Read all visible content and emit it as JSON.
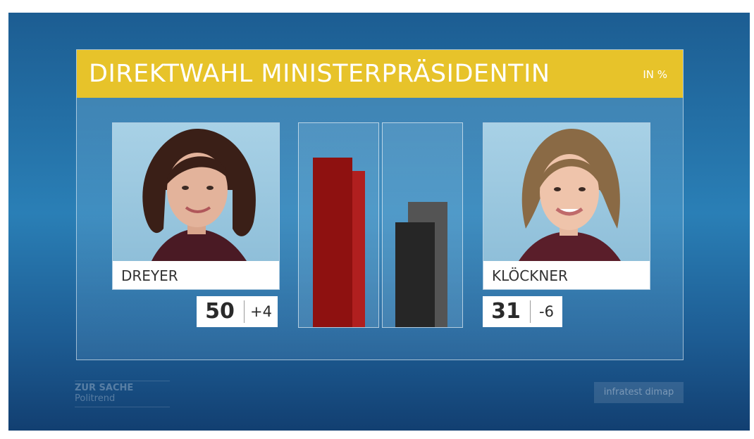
{
  "header": {
    "title": "DIREKTWAHL MINISTERPRÄSIDENTIN",
    "unit": "IN %"
  },
  "footer": {
    "program": "ZUR SACHE",
    "subtitle": "Politrend",
    "source": "infratest dimap"
  },
  "colors": {
    "title_bar": "#e7c32a",
    "dreyer_current": "#8e1110",
    "dreyer_previous": "#b01f1f",
    "kloeckner_current": "#262626",
    "kloeckner_previous": "#545454"
  },
  "chart_data": {
    "type": "bar",
    "title": "DIREKTWAHL MINISTERPRÄSIDENTIN",
    "unit": "IN %",
    "categories": [
      "DREYER",
      "KLÖCKNER"
    ],
    "series": [
      {
        "values": [
          50,
          31
        ]
      },
      {
        "values": [
          46,
          37
        ]
      }
    ],
    "changes": [
      "+4",
      "-6"
    ],
    "ylim": [
      0,
      60
    ]
  }
}
